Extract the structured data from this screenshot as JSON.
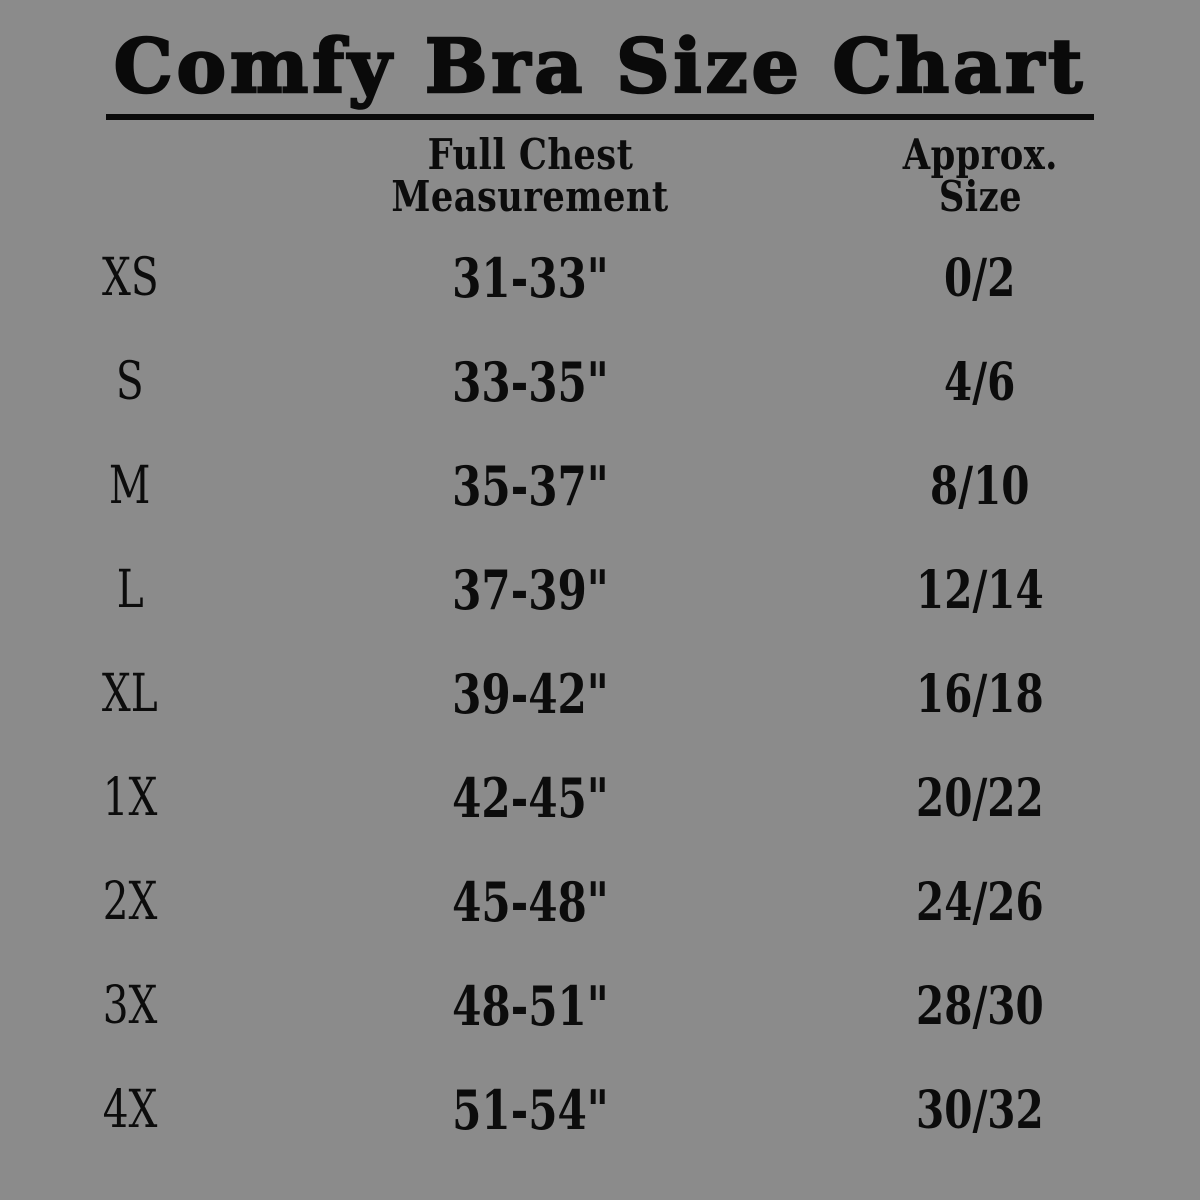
{
  "page": {
    "background_color": "#8b8b8b",
    "text_color": "#0a0a0a"
  },
  "title": "Comfy Bra Size Chart",
  "table": {
    "headers": {
      "chest_line1": "Full Chest",
      "chest_line2": "Measurement",
      "approx_line1": "Approx.",
      "approx_line2": "Size"
    },
    "rows": [
      {
        "size": "XS",
        "chest": "31-33\"",
        "approx": "0/2"
      },
      {
        "size": "S",
        "chest": "33-35\"",
        "approx": "4/6"
      },
      {
        "size": "M",
        "chest": "35-37\"",
        "approx": "8/10"
      },
      {
        "size": "L",
        "chest": "37-39\"",
        "approx": "12/14"
      },
      {
        "size": "XL",
        "chest": "39-42\"",
        "approx": "16/18"
      },
      {
        "size": "1X",
        "chest": "42-45\"",
        "approx": "20/22"
      },
      {
        "size": "2X",
        "chest": "45-48\"",
        "approx": "24/26"
      },
      {
        "size": "3X",
        "chest": "48-51\"",
        "approx": "28/30"
      },
      {
        "size": "4X",
        "chest": "51-54\"",
        "approx": "30/32"
      }
    ]
  }
}
